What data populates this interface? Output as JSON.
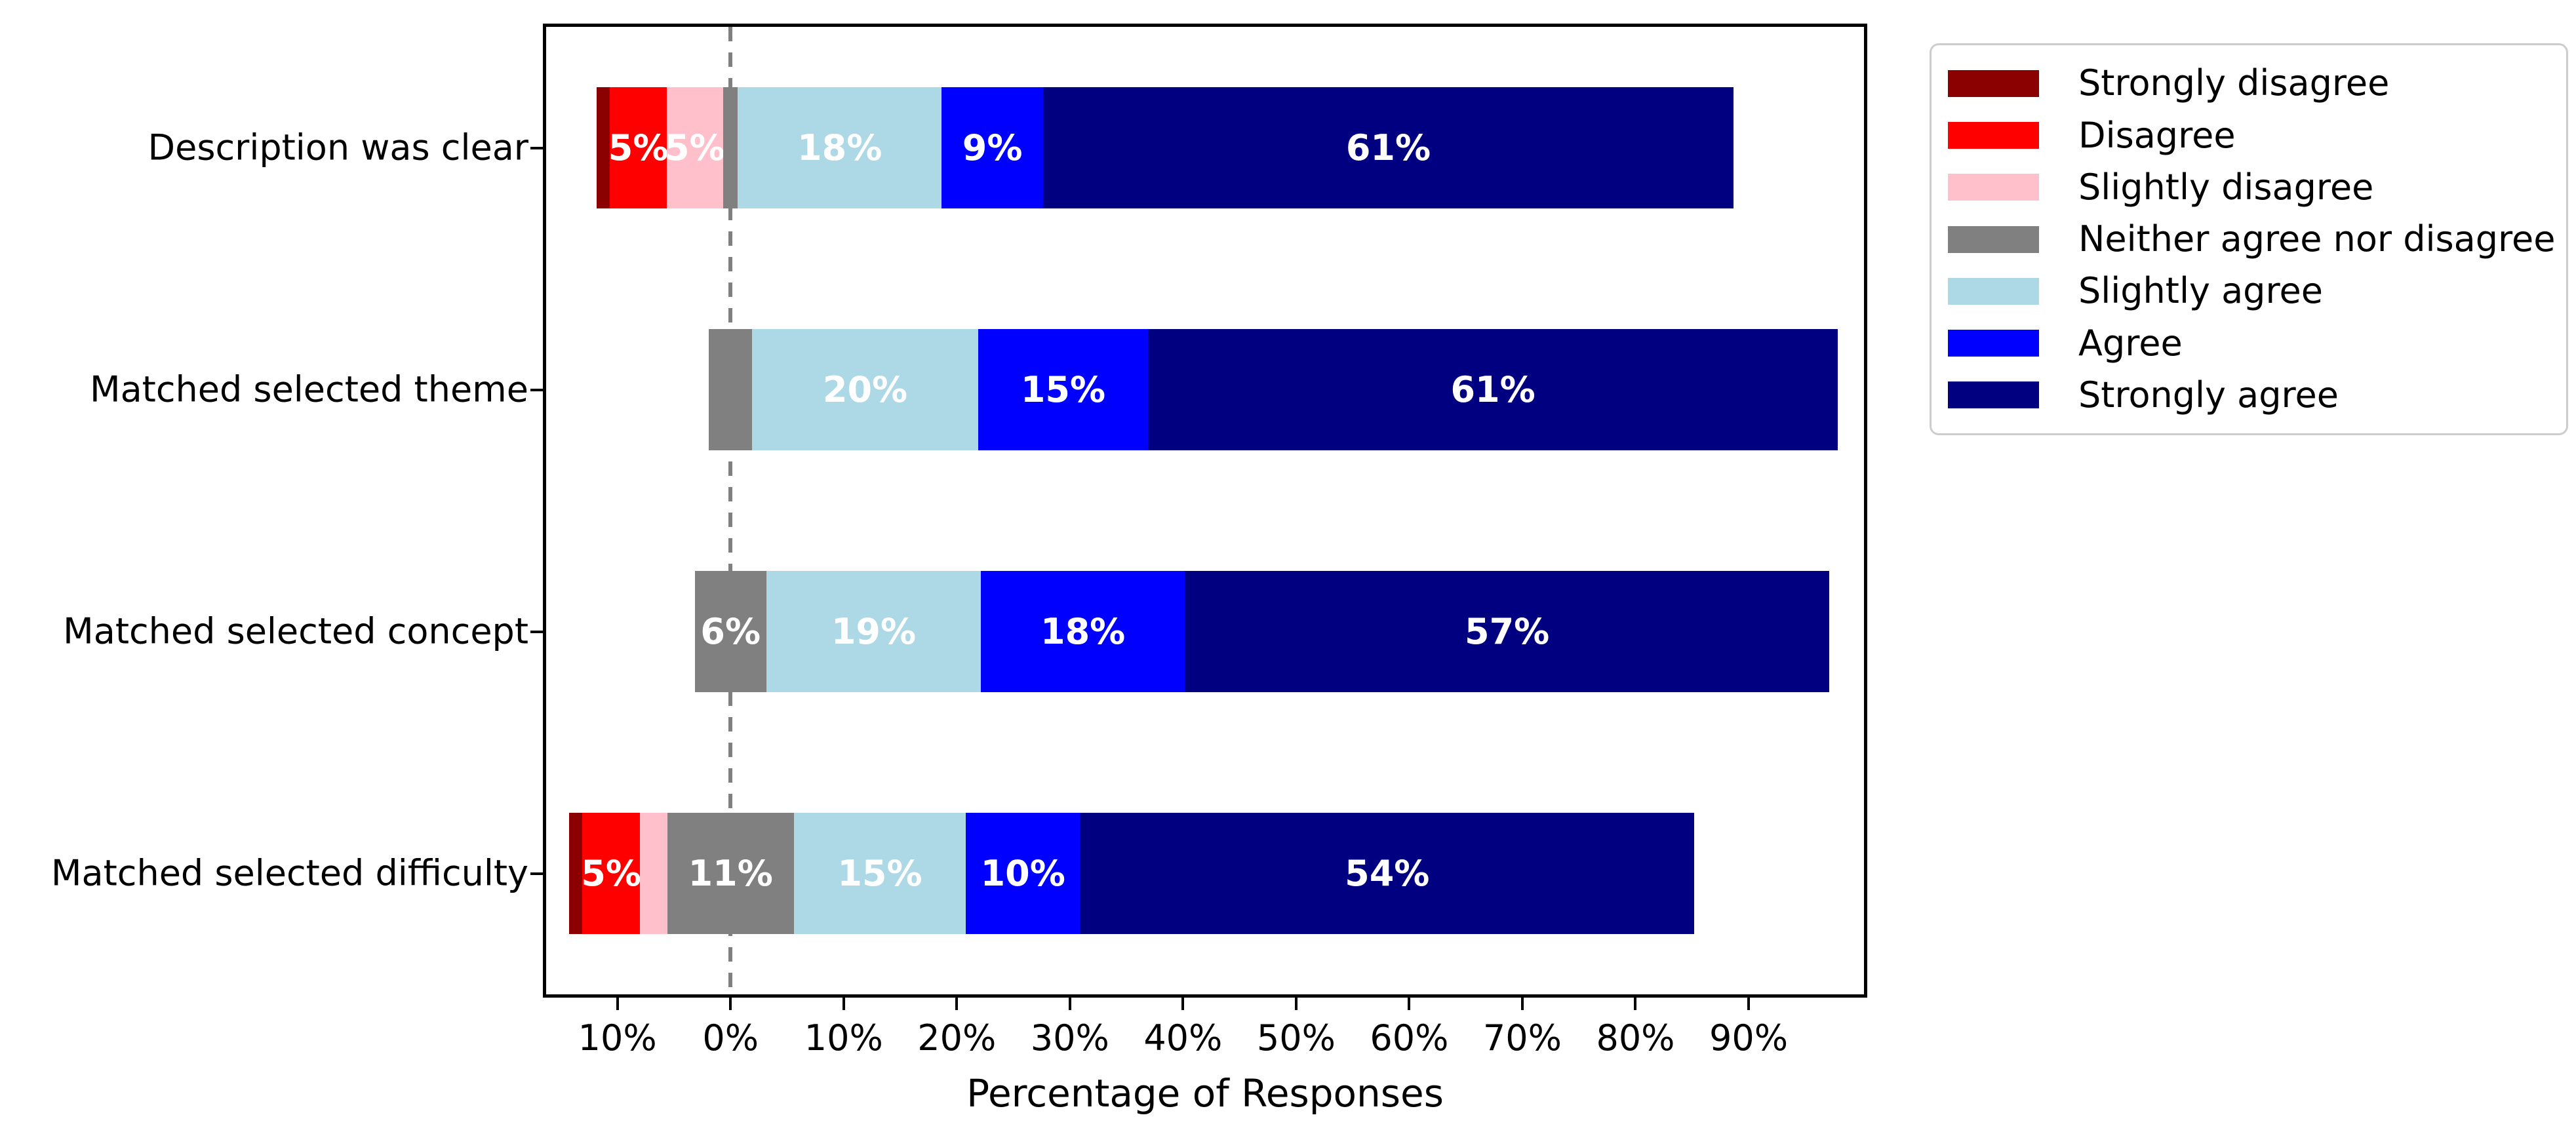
{
  "figure": {
    "background": "#ffffff"
  },
  "chart_data": {
    "type": "bar",
    "variant": "diverging-stacked-horizontal-likert",
    "title": "",
    "xlabel": "Percentage of Responses",
    "ylabel": "",
    "categories": [
      "Description was clear",
      "Matched selected theme",
      "Matched selected concept",
      "Matched selected difficulty"
    ],
    "series": [
      {
        "name": "Strongly disagree",
        "color": "#8B0000",
        "values": [
          1.2,
          0,
          0,
          1.2
        ],
        "labels": [
          "",
          "",
          "",
          ""
        ]
      },
      {
        "name": "Disagree",
        "color": "#FF0000",
        "values": [
          5,
          0,
          0,
          5.1
        ],
        "labels": [
          "5%",
          "",
          "",
          "5%"
        ]
      },
      {
        "name": "Slightly disagree",
        "color": "#FFC0CB",
        "values": [
          5,
          0,
          0,
          2.4
        ],
        "labels": [
          "5%",
          "",
          "",
          ""
        ]
      },
      {
        "name": "Neither agree nor disagree",
        "color": "#808080",
        "values": [
          1.3,
          3.8,
          6.3,
          11.2
        ],
        "labels": [
          "",
          "",
          "6%",
          "11%"
        ]
      },
      {
        "name": "Slightly agree",
        "color": "#ADD8E6",
        "values": [
          18,
          20,
          19,
          15.2
        ],
        "labels": [
          "18%",
          "20%",
          "19%",
          "15%"
        ]
      },
      {
        "name": "Agree",
        "color": "#0000FF",
        "values": [
          9,
          15,
          18,
          10.1
        ],
        "labels": [
          "9%",
          "15%",
          "18%",
          "10%"
        ]
      },
      {
        "name": "Strongly agree",
        "color": "#000080",
        "values": [
          61,
          61,
          57,
          54.3
        ],
        "labels": [
          "61%",
          "61%",
          "57%",
          "54%"
        ]
      }
    ],
    "center_category_index": 3,
    "bar_label_color": "#ffffff",
    "x_ticks": [
      {
        "value": -10,
        "label": "10%"
      },
      {
        "value": 0,
        "label": "0%"
      },
      {
        "value": 10,
        "label": "10%"
      },
      {
        "value": 20,
        "label": "20%"
      },
      {
        "value": 30,
        "label": "30%"
      },
      {
        "value": 40,
        "label": "40%"
      },
      {
        "value": 50,
        "label": "50%"
      },
      {
        "value": 60,
        "label": "60%"
      },
      {
        "value": 70,
        "label": "70%"
      },
      {
        "value": 80,
        "label": "80%"
      },
      {
        "value": 90,
        "label": "90%"
      }
    ],
    "xlim": [
      -16.3,
      100.2
    ],
    "grid": false,
    "zero_line": {
      "x": 0,
      "style": "dashed",
      "color": "#808080"
    },
    "legend_position": "outside-upper-right",
    "axis_color": "#000000"
  }
}
